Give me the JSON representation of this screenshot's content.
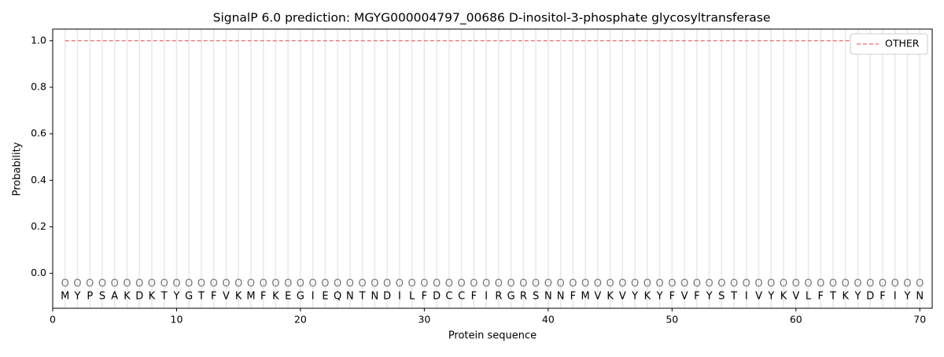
{
  "chart_data": {
    "type": "line",
    "title": "SignalP 6.0 prediction: MGYG000004797_00686 D-inositol-3-phosphate glycosyltransferase",
    "x_label": "Protein sequence",
    "y_label": "Probability",
    "x": [
      1,
      2,
      3,
      4,
      5,
      6,
      7,
      8,
      9,
      10,
      11,
      12,
      13,
      14,
      15,
      16,
      17,
      18,
      19,
      20,
      21,
      22,
      23,
      24,
      25,
      26,
      27,
      28,
      29,
      30,
      31,
      32,
      33,
      34,
      35,
      36,
      37,
      38,
      39,
      40,
      41,
      42,
      43,
      44,
      45,
      46,
      47,
      48,
      49,
      50,
      51,
      52,
      53,
      54,
      55,
      56,
      57,
      58,
      59,
      60,
      61,
      62,
      63,
      64,
      65,
      66,
      67,
      68,
      69,
      70
    ],
    "residues": [
      "M",
      "Y",
      "P",
      "S",
      "A",
      "K",
      "D",
      "K",
      "T",
      "Y",
      "G",
      "T",
      "F",
      "V",
      "K",
      "M",
      "F",
      "K",
      "E",
      "G",
      "I",
      "E",
      "Q",
      "N",
      "T",
      "N",
      "D",
      "I",
      "L",
      "F",
      "D",
      "C",
      "C",
      "F",
      "I",
      "R",
      "G",
      "R",
      "S",
      "N",
      "N",
      "F",
      "M",
      "V",
      "K",
      "V",
      "Y",
      "K",
      "Y",
      "F",
      "V",
      "F",
      "Y",
      "S",
      "T",
      "I",
      "V",
      "Y",
      "K",
      "V",
      "L",
      "F",
      "T",
      "K",
      "Y",
      "D",
      "F",
      "I",
      "Y",
      "N"
    ],
    "predicted_labels": [
      "O",
      "O",
      "O",
      "O",
      "O",
      "O",
      "O",
      "O",
      "O",
      "O",
      "O",
      "O",
      "O",
      "O",
      "O",
      "O",
      "O",
      "O",
      "O",
      "O",
      "O",
      "O",
      "O",
      "O",
      "O",
      "O",
      "O",
      "O",
      "O",
      "O",
      "O",
      "O",
      "O",
      "O",
      "O",
      "O",
      "O",
      "O",
      "O",
      "O",
      "O",
      "O",
      "O",
      "O",
      "O",
      "O",
      "O",
      "O",
      "O",
      "O",
      "O",
      "O",
      "O",
      "O",
      "O",
      "O",
      "O",
      "O",
      "O",
      "O",
      "O",
      "O",
      "O",
      "O",
      "O",
      "O",
      "O",
      "O",
      "O",
      "O"
    ],
    "series": [
      {
        "name": "OTHER",
        "color": "#f08080",
        "dashed": true,
        "values": [
          1,
          1,
          1,
          1,
          1,
          1,
          1,
          1,
          1,
          1,
          1,
          1,
          1,
          1,
          1,
          1,
          1,
          1,
          1,
          1,
          1,
          1,
          1,
          1,
          1,
          1,
          1,
          1,
          1,
          1,
          1,
          1,
          1,
          1,
          1,
          1,
          1,
          1,
          1,
          1,
          1,
          1,
          1,
          1,
          1,
          1,
          1,
          1,
          1,
          1,
          1,
          1,
          1,
          1,
          1,
          1,
          1,
          1,
          1,
          1,
          1,
          1,
          1,
          1,
          1,
          1,
          1,
          1,
          1,
          1
        ]
      }
    ],
    "xlim": [
      0,
      71
    ],
    "ylim": [
      -0.15,
      1.05
    ],
    "xticks": [
      0,
      10,
      20,
      30,
      40,
      50,
      60,
      70
    ],
    "yticks": [
      {
        "value": 0,
        "label": "0.0"
      },
      {
        "value": 0.2,
        "label": "0.2"
      },
      {
        "value": 0.4,
        "label": "0.4"
      },
      {
        "value": 0.6,
        "label": "0.6"
      },
      {
        "value": 0.8,
        "label": "0.8"
      },
      {
        "value": 1,
        "label": "1.0"
      }
    ],
    "legend": "upper right",
    "grid": "x"
  }
}
